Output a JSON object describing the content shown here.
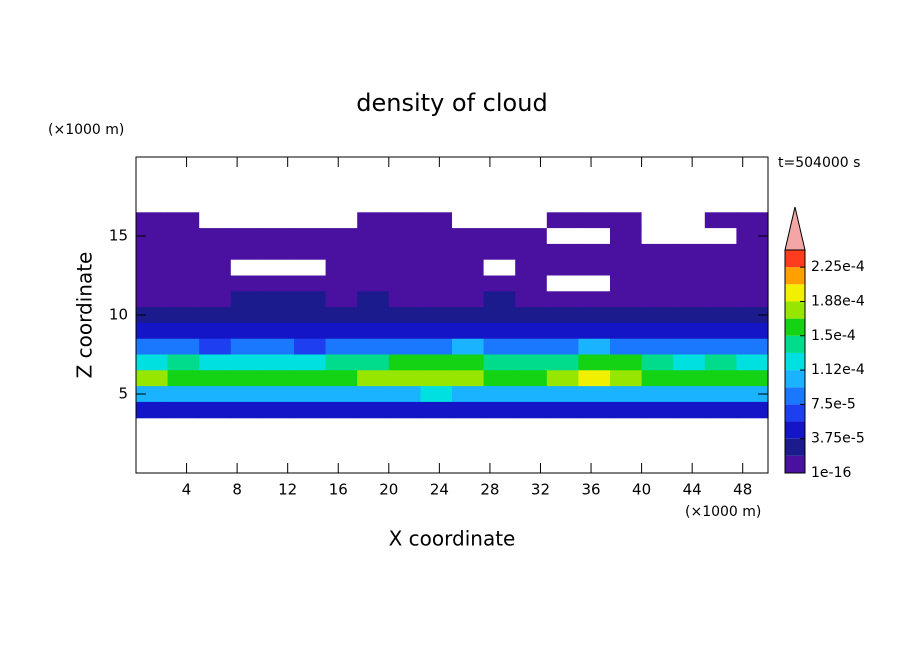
{
  "chart_data": {
    "type": "contour",
    "title": "density of cloud",
    "annotation": "t=504000 s",
    "x_label": "X coordinate",
    "y_label": "Z coordinate",
    "x_unit": "(×1000 m)",
    "y_unit": "(×1000 m)",
    "xlim": [
      0,
      50
    ],
    "ylim": [
      0,
      20
    ],
    "xticks": [
      4,
      8,
      12,
      16,
      20,
      24,
      28,
      32,
      36,
      40,
      44,
      48
    ],
    "yticks": [
      5,
      10,
      15
    ],
    "x": [
      1.25,
      3.75,
      6.25,
      8.75,
      11.25,
      13.75,
      16.25,
      18.75,
      21.25,
      23.75,
      26.25,
      28.75,
      31.25,
      33.75,
      36.25,
      38.75,
      41.25,
      43.75,
      46.25,
      48.75
    ],
    "y": [
      16,
      15,
      14,
      13,
      12,
      11,
      10,
      9,
      8,
      7,
      6,
      5,
      4
    ],
    "z": [
      [
        3e-06,
        3e-06,
        0,
        0,
        0,
        0,
        0,
        3e-06,
        3e-06,
        2e-06,
        0,
        0,
        0,
        2e-06,
        3e-06,
        3e-06,
        0,
        0,
        2e-06,
        3e-06
      ],
      [
        4e-06,
        5e-06,
        5e-06,
        5e-06,
        5e-06,
        5e-06,
        4e-06,
        4e-06,
        5e-06,
        4e-06,
        4e-06,
        3e-06,
        4e-06,
        0,
        0,
        3e-06,
        0,
        0,
        0,
        3e-06
      ],
      [
        6e-06,
        6e-06,
        7e-06,
        7e-06,
        6e-06,
        6e-06,
        7e-06,
        7e-06,
        6e-06,
        6e-06,
        7e-06,
        6e-06,
        6e-06,
        5e-06,
        5e-06,
        6e-06,
        6e-06,
        5e-06,
        5e-06,
        6e-06
      ],
      [
        8e-06,
        9e-06,
        8e-06,
        0,
        0,
        0,
        9e-06,
        1e-05,
        9e-06,
        8e-06,
        9e-06,
        0,
        8e-06,
        9e-06,
        8e-06,
        9e-06,
        1e-05,
        9e-06,
        8e-06,
        9e-06
      ],
      [
        1.2e-05,
        1.3e-05,
        1.2e-05,
        1.4e-05,
        1.5e-05,
        1.4e-05,
        1.3e-05,
        1.4e-05,
        1.2e-05,
        1.3e-05,
        1.2e-05,
        1.3e-05,
        1.2e-05,
        0,
        0,
        1.2e-05,
        1.3e-05,
        1.2e-05,
        1.3e-05,
        1.2e-05
      ],
      [
        1.6e-05,
        1.8e-05,
        1.7e-05,
        1.9e-05,
        2e-05,
        1.9e-05,
        1.8e-05,
        1.9e-05,
        1.7e-05,
        1.8e-05,
        1.7e-05,
        1.9e-05,
        1.6e-05,
        1.7e-05,
        1.8e-05,
        1.6e-05,
        1.8e-05,
        1.7e-05,
        1.8e-05,
        1.6e-05
      ],
      [
        2.4e-05,
        2.6e-05,
        2.2e-05,
        2.8e-05,
        3e-05,
        2.7e-05,
        2.5e-05,
        2.9e-05,
        2.6e-05,
        2.8e-05,
        2.5e-05,
        2.7e-05,
        2.4e-05,
        2.6e-05,
        2.8e-05,
        2.5e-05,
        2.7e-05,
        2.6e-05,
        2.8e-05,
        2.5e-05
      ],
      [
        4.5e-05,
        4.8e-05,
        4.2e-05,
        4.6e-05,
        4.9e-05,
        4.4e-05,
        4.7e-05,
        4.5e-05,
        4.8e-05,
        5e-05,
        4.6e-05,
        4.3e-05,
        4.7e-05,
        4.9e-05,
        5.2e-05,
        4.6e-05,
        4.4e-05,
        4.8e-05,
        4.5e-05,
        5e-05
      ],
      [
        8e-05,
        7.5e-05,
        7e-05,
        7.8e-05,
        8.2e-05,
        7.4e-05,
        7.9e-05,
        8.5e-05,
        8.8e-05,
        9e-05,
        9.5e-05,
        8e-05,
        7.6e-05,
        8.4e-05,
        9.8e-05,
        9.2e-05,
        8.1e-05,
        7.7e-05,
        8.3e-05,
        7.9e-05
      ],
      [
        0.00013,
        0.000135,
        0.000125,
        0.00013,
        0.00012,
        0.000128,
        0.000135,
        0.00014,
        0.00015,
        0.000158,
        0.000162,
        0.00014,
        0.000132,
        0.000145,
        0.000165,
        0.000155,
        0.00014,
        0.00013,
        0.000135,
        0.00013
      ],
      [
        0.00017,
        0.000165,
        0.00016,
        0.000155,
        0.00015,
        0.000158,
        0.000162,
        0.00017,
        0.000178,
        0.000185,
        0.00018,
        0.00016,
        0.000155,
        0.000172,
        0.000195,
        0.00018,
        0.000168,
        0.00016,
        0.000162,
        0.000158
      ],
      [
        0.000105,
        0.00011,
        0.0001,
        0.000108,
        0.000102,
        0.000106,
        0.000112,
        0.000105,
        0.00011,
        0.000115,
        0.000108,
        0.000104,
        0.0001,
        0.000106,
        0.000112,
        0.00011,
        0.000105,
        0.000108,
        0.000102,
        0.000106
      ],
      [
        5e-05,
        5.5e-05,
        4.8e-05,
        5.2e-05,
        5e-05,
        4.6e-05,
        5.4e-05,
        5.1e-05,
        4.9e-05,
        5.3e-05,
        5e-05,
        4.2e-05,
        4.7e-05,
        5.1e-05,
        5.5e-05,
        5e-05,
        4.8e-05,
        5.2e-05,
        4.9e-05,
        5.1e-05
      ]
    ],
    "colorbar": {
      "levels": [
        1e-16,
        1.875e-05,
        3.75e-05,
        5.625e-05,
        7.5e-05,
        9.375e-05,
        0.0001125,
        0.00013125,
        0.00015,
        0.00016875,
        0.0001875,
        0.00020625,
        0.000225,
        0.00024375
      ],
      "colors": [
        "#4a10a0",
        "#1b1b8e",
        "#1515c8",
        "#1e3ff0",
        "#1a78ff",
        "#19b3ff",
        "#00e0e0",
        "#00dc8c",
        "#14d214",
        "#96e600",
        "#f0f000",
        "#ffa000",
        "#ff3c1e"
      ],
      "extend_color": "#f4a6a6",
      "ticks": [
        {
          "value": 1e-16,
          "label": "1e-16"
        },
        {
          "value": 3.75e-05,
          "label": "3.75e-5"
        },
        {
          "value": 7.5e-05,
          "label": "7.5e-5"
        },
        {
          "value": 0.0001125,
          "label": "1.12e-4"
        },
        {
          "value": 0.00015,
          "label": "1.5e-4"
        },
        {
          "value": 0.0001875,
          "label": "1.88e-4"
        },
        {
          "value": 0.000225,
          "label": "2.25e-4"
        }
      ]
    }
  }
}
